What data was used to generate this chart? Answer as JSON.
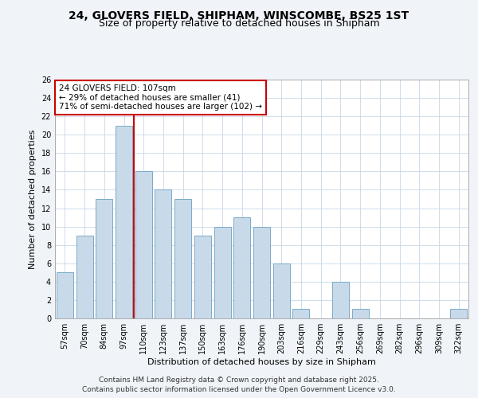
{
  "title": "24, GLOVERS FIELD, SHIPHAM, WINSCOMBE, BS25 1ST",
  "subtitle": "Size of property relative to detached houses in Shipham",
  "xlabel": "Distribution of detached houses by size in Shipham",
  "ylabel": "Number of detached properties",
  "categories": [
    "57sqm",
    "70sqm",
    "84sqm",
    "97sqm",
    "110sqm",
    "123sqm",
    "137sqm",
    "150sqm",
    "163sqm",
    "176sqm",
    "190sqm",
    "203sqm",
    "216sqm",
    "229sqm",
    "243sqm",
    "256sqm",
    "269sqm",
    "282sqm",
    "296sqm",
    "309sqm",
    "322sqm"
  ],
  "values": [
    5,
    9,
    13,
    21,
    16,
    14,
    13,
    9,
    10,
    11,
    10,
    6,
    1,
    0,
    4,
    1,
    0,
    0,
    0,
    0,
    1
  ],
  "bar_color": "#c8daea",
  "bar_edge_color": "#7aaac8",
  "vline_x": 4.0,
  "vline_color": "#cc0000",
  "annotation_text": "24 GLOVERS FIELD: 107sqm\n← 29% of detached houses are smaller (41)\n71% of semi-detached houses are larger (102) →",
  "annotation_box_color": "#ffffff",
  "annotation_box_edge": "#cc0000",
  "ylim": [
    0,
    26
  ],
  "yticks": [
    0,
    2,
    4,
    6,
    8,
    10,
    12,
    14,
    16,
    18,
    20,
    22,
    24,
    26
  ],
  "footer_line1": "Contains HM Land Registry data © Crown copyright and database right 2025.",
  "footer_line2": "Contains public sector information licensed under the Open Government Licence v3.0.",
  "bg_color": "#f0f4f8",
  "plot_bg_color": "#ffffff",
  "grid_color": "#c8d8e8",
  "title_fontsize": 10,
  "subtitle_fontsize": 9,
  "axis_label_fontsize": 8,
  "tick_fontsize": 7,
  "annotation_fontsize": 7.5,
  "footer_fontsize": 6.5
}
